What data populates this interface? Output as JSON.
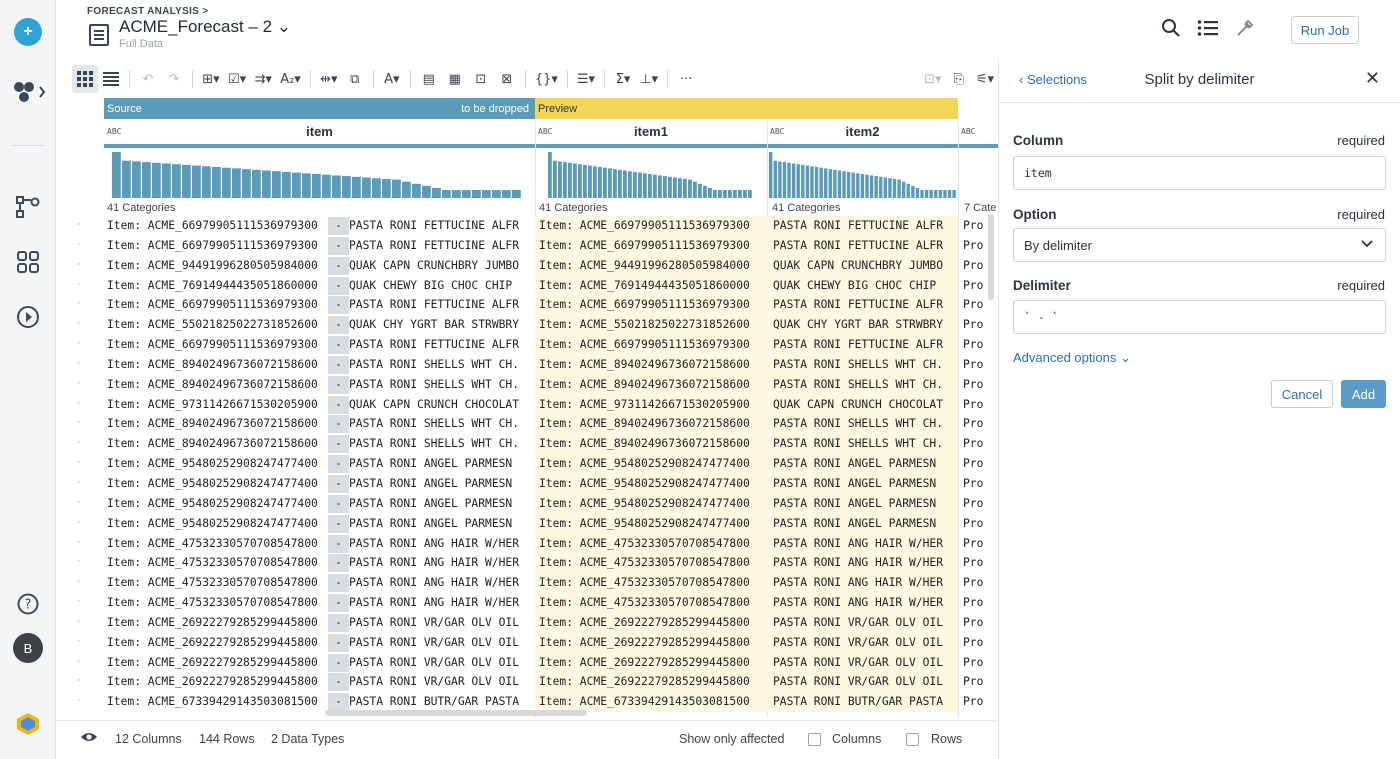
{
  "header": {
    "breadcrumb": "FORECAST ANALYSIS >",
    "title": "ACME_Forecast – 2 ⌄",
    "subtitle": "Full Data",
    "run_job": "Run Job"
  },
  "toolbar": {
    "more": "···"
  },
  "grid": {
    "source_label": "Source",
    "to_drop_label": "to be dropped",
    "preview_label": "Preview",
    "columns": [
      {
        "type": "ABC",
        "name": "item",
        "categories": "41 Categories"
      },
      {
        "type": "ABC",
        "name": "item1",
        "categories": "41 Categories"
      },
      {
        "type": "ABC",
        "name": "item2",
        "categories": "41 Categories"
      },
      {
        "type": "ABC",
        "name": "",
        "categories": "7 Cate"
      }
    ],
    "rows": [
      [
        "Item: ACME_66979905111536979300",
        "PASTA RONI FETTUCINE ALFR",
        "Item: ACME_66979905111536979300",
        "PASTA RONI FETTUCINE ALFR",
        "Pro"
      ],
      [
        "Item: ACME_66979905111536979300",
        "PASTA RONI FETTUCINE ALFR",
        "Item: ACME_66979905111536979300",
        "PASTA RONI FETTUCINE ALFR",
        "Pro"
      ],
      [
        "Item: ACME_94491996280505984000",
        "QUAK CAPN CRUNCHBRY JUMBO",
        "Item: ACME_94491996280505984000",
        "QUAK CAPN CRUNCHBRY JUMBO",
        "Pro"
      ],
      [
        "Item: ACME_76914944435051860000",
        "QUAK CHEWY BIG CHOC CHIP",
        "Item: ACME_76914944435051860000",
        "QUAK CHEWY BIG CHOC CHIP",
        "Pro"
      ],
      [
        "Item: ACME_66979905111536979300",
        "PASTA RONI FETTUCINE ALFR",
        "Item: ACME_66979905111536979300",
        "PASTA RONI FETTUCINE ALFR",
        "Pro"
      ],
      [
        "Item: ACME_55021825022731852600",
        "QUAK CHY YGRT BAR STRWBRY",
        "Item: ACME_55021825022731852600",
        "QUAK CHY YGRT BAR STRWBRY",
        "Pro"
      ],
      [
        "Item: ACME_66979905111536979300",
        "PASTA RONI FETTUCINE ALFR",
        "Item: ACME_66979905111536979300",
        "PASTA RONI FETTUCINE ALFR",
        "Pro"
      ],
      [
        "Item: ACME_89402496736072158600",
        "PASTA RONI SHELLS WHT CH.",
        "Item: ACME_89402496736072158600",
        "PASTA RONI SHELLS WHT CH.",
        "Pro"
      ],
      [
        "Item: ACME_89402496736072158600",
        "PASTA RONI SHELLS WHT CH.",
        "Item: ACME_89402496736072158600",
        "PASTA RONI SHELLS WHT CH.",
        "Pro"
      ],
      [
        "Item: ACME_97311426671530205900",
        "QUAK CAPN CRUNCH CHOCOLAT",
        "Item: ACME_97311426671530205900",
        "QUAK CAPN CRUNCH CHOCOLAT",
        "Pro"
      ],
      [
        "Item: ACME_89402496736072158600",
        "PASTA RONI SHELLS WHT CH.",
        "Item: ACME_89402496736072158600",
        "PASTA RONI SHELLS WHT CH.",
        "Pro"
      ],
      [
        "Item: ACME_89402496736072158600",
        "PASTA RONI SHELLS WHT CH.",
        "Item: ACME_89402496736072158600",
        "PASTA RONI SHELLS WHT CH.",
        "Pro"
      ],
      [
        "Item: ACME_95480252908247477400",
        "PASTA RONI ANGEL PARMESN",
        "Item: ACME_95480252908247477400",
        "PASTA RONI ANGEL PARMESN",
        "Pro"
      ],
      [
        "Item: ACME_95480252908247477400",
        "PASTA RONI ANGEL PARMESN",
        "Item: ACME_95480252908247477400",
        "PASTA RONI ANGEL PARMESN",
        "Pro"
      ],
      [
        "Item: ACME_95480252908247477400",
        "PASTA RONI ANGEL PARMESN",
        "Item: ACME_95480252908247477400",
        "PASTA RONI ANGEL PARMESN",
        "Pro"
      ],
      [
        "Item: ACME_95480252908247477400",
        "PASTA RONI ANGEL PARMESN",
        "Item: ACME_95480252908247477400",
        "PASTA RONI ANGEL PARMESN",
        "Pro"
      ],
      [
        "Item: ACME_47532330570708547800",
        "PASTA RONI ANG HAIR W/HER",
        "Item: ACME_47532330570708547800",
        "PASTA RONI ANG HAIR W/HER",
        "Pro"
      ],
      [
        "Item: ACME_47532330570708547800",
        "PASTA RONI ANG HAIR W/HER",
        "Item: ACME_47532330570708547800",
        "PASTA RONI ANG HAIR W/HER",
        "Pro"
      ],
      [
        "Item: ACME_47532330570708547800",
        "PASTA RONI ANG HAIR W/HER",
        "Item: ACME_47532330570708547800",
        "PASTA RONI ANG HAIR W/HER",
        "Pro"
      ],
      [
        "Item: ACME_47532330570708547800",
        "PASTA RONI ANG HAIR W/HER",
        "Item: ACME_47532330570708547800",
        "PASTA RONI ANG HAIR W/HER",
        "Pro"
      ],
      [
        "Item: ACME_26922279285299445800",
        "PASTA RONI VR/GAR OLV OIL",
        "Item: ACME_26922279285299445800",
        "PASTA RONI VR/GAR OLV OIL",
        "Pro"
      ],
      [
        "Item: ACME_26922279285299445800",
        "PASTA RONI VR/GAR OLV OIL",
        "Item: ACME_26922279285299445800",
        "PASTA RONI VR/GAR OLV OIL",
        "Pro"
      ],
      [
        "Item: ACME_26922279285299445800",
        "PASTA RONI VR/GAR OLV OIL",
        "Item: ACME_26922279285299445800",
        "PASTA RONI VR/GAR OLV OIL",
        "Pro"
      ],
      [
        "Item: ACME_26922279285299445800",
        "PASTA RONI VR/GAR OLV OIL",
        "Item: ACME_26922279285299445800",
        "PASTA RONI VR/GAR OLV OIL",
        "Pro"
      ],
      [
        "Item: ACME_67339429143503081500",
        "PASTA RONI BUTR/GAR PASTA",
        "Item: ACME_67339429143503081500",
        "PASTA RONI BUTR/GAR PASTA",
        "Pro"
      ]
    ],
    "delimiter_display": "-"
  },
  "footer": {
    "columns": "12 Columns",
    "rows": "144 Rows",
    "types": "2 Data Types",
    "show_only": "Show only affected",
    "chk_columns": "Columns",
    "chk_rows": "Rows"
  },
  "panel": {
    "back": "‹  Selections",
    "title": "Split by delimiter",
    "column_label": "Column",
    "column_value": "item",
    "option_label": "Option",
    "option_value": "By delimiter",
    "delimiter_label": "Delimiter",
    "delimiter_value": "` - `",
    "required": "required",
    "advanced": "Advanced options ⌄",
    "cancel": "Cancel",
    "add": "Add"
  },
  "user": {
    "initial": "B"
  }
}
